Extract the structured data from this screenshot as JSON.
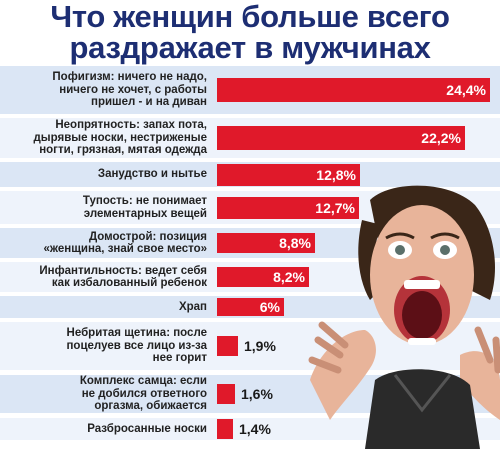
{
  "title": {
    "line1": "Что женщин больше всего",
    "line2": "раздражает в мужчинах"
  },
  "colors": {
    "title": "#1d2e73",
    "bar": "#e0192a",
    "band_light": "#eef3fb",
    "band_dark": "#dbe6f5"
  },
  "chart_data": {
    "type": "bar",
    "orientation": "horizontal",
    "categories": [
      "Пофигизм: ничего не надо, ничего не хочет, с работы пришел - и на диван",
      "Неопрятность: запах пота, дырявые носки, нестриженые ногти, грязная, мятая одежда",
      "Занудство и нытье",
      "Тупость: не понимает элементарных вещей",
      "Домострой: позиция «женщина, знай свое место»",
      "Инфантильность: ведет себя как избалованный ребенок",
      "Храп",
      "Небритая щетина: после поцелуев все лицо из-за нее горит",
      "Комплекс самца: если не добился ответного оргазма, обижается",
      "Разбросанные носки"
    ],
    "label_lines": [
      [
        "Пофигизм: ничего не надо,",
        "ничего не хочет, с работы",
        "пришел - и на диван"
      ],
      [
        "Неопрятность: запах пота,",
        "дырявые носки, нестриженые",
        "ногти, грязная, мятая одежда"
      ],
      [
        "Занудство и нытье"
      ],
      [
        "Тупость: не понимает",
        "элементарных вещей"
      ],
      [
        "Домострой: позиция",
        "«женщина, знай свое место»"
      ],
      [
        "Инфантильность: ведет себя",
        "как избалованный ребенок"
      ],
      [
        "Храп"
      ],
      [
        "Небритая щетина: после",
        "поцелуев все лицо из-за",
        "нее горит"
      ],
      [
        "Комплекс самца: если",
        "не добился ответного",
        "оргазма, обижается"
      ],
      [
        "Разбросанные носки"
      ]
    ],
    "values": [
      24.4,
      22.2,
      12.8,
      12.7,
      8.8,
      8.2,
      6,
      1.9,
      1.6,
      1.4
    ],
    "value_labels": [
      "24,4%",
      "22,2%",
      "12,8%",
      "12,7%",
      "8,8%",
      "8,2%",
      "6%",
      "1,9%",
      "1,6%",
      "1,4%"
    ],
    "xlim": [
      0,
      24.4
    ]
  }
}
